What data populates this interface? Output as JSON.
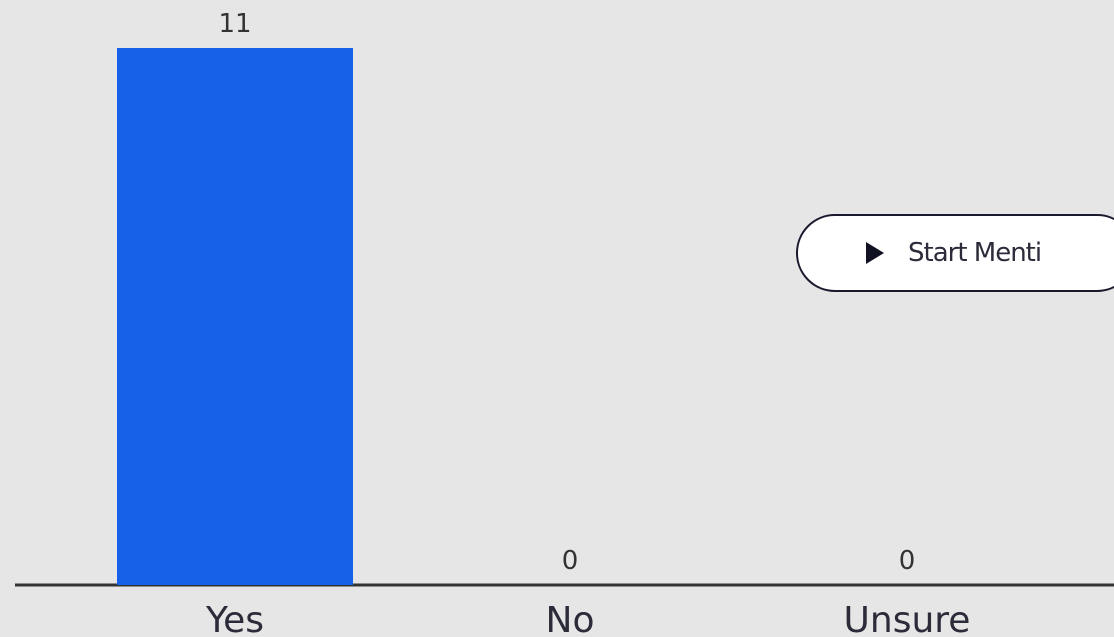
{
  "chart_data": {
    "type": "bar",
    "categories": [
      "Yes",
      "No",
      "Unsure"
    ],
    "values": [
      11,
      0,
      0
    ],
    "data_labels": [
      "11",
      "0",
      "0"
    ],
    "title": "",
    "xlabel": "",
    "ylabel": "",
    "ylim": [
      0,
      11
    ],
    "grid": false,
    "legend": "none",
    "bar_color": "#1760e8",
    "background_color": "#e6e6e6",
    "axis_color": "#333333"
  },
  "controls": {
    "start_button_label": "Start Menti",
    "start_button_icon": "play-icon"
  }
}
